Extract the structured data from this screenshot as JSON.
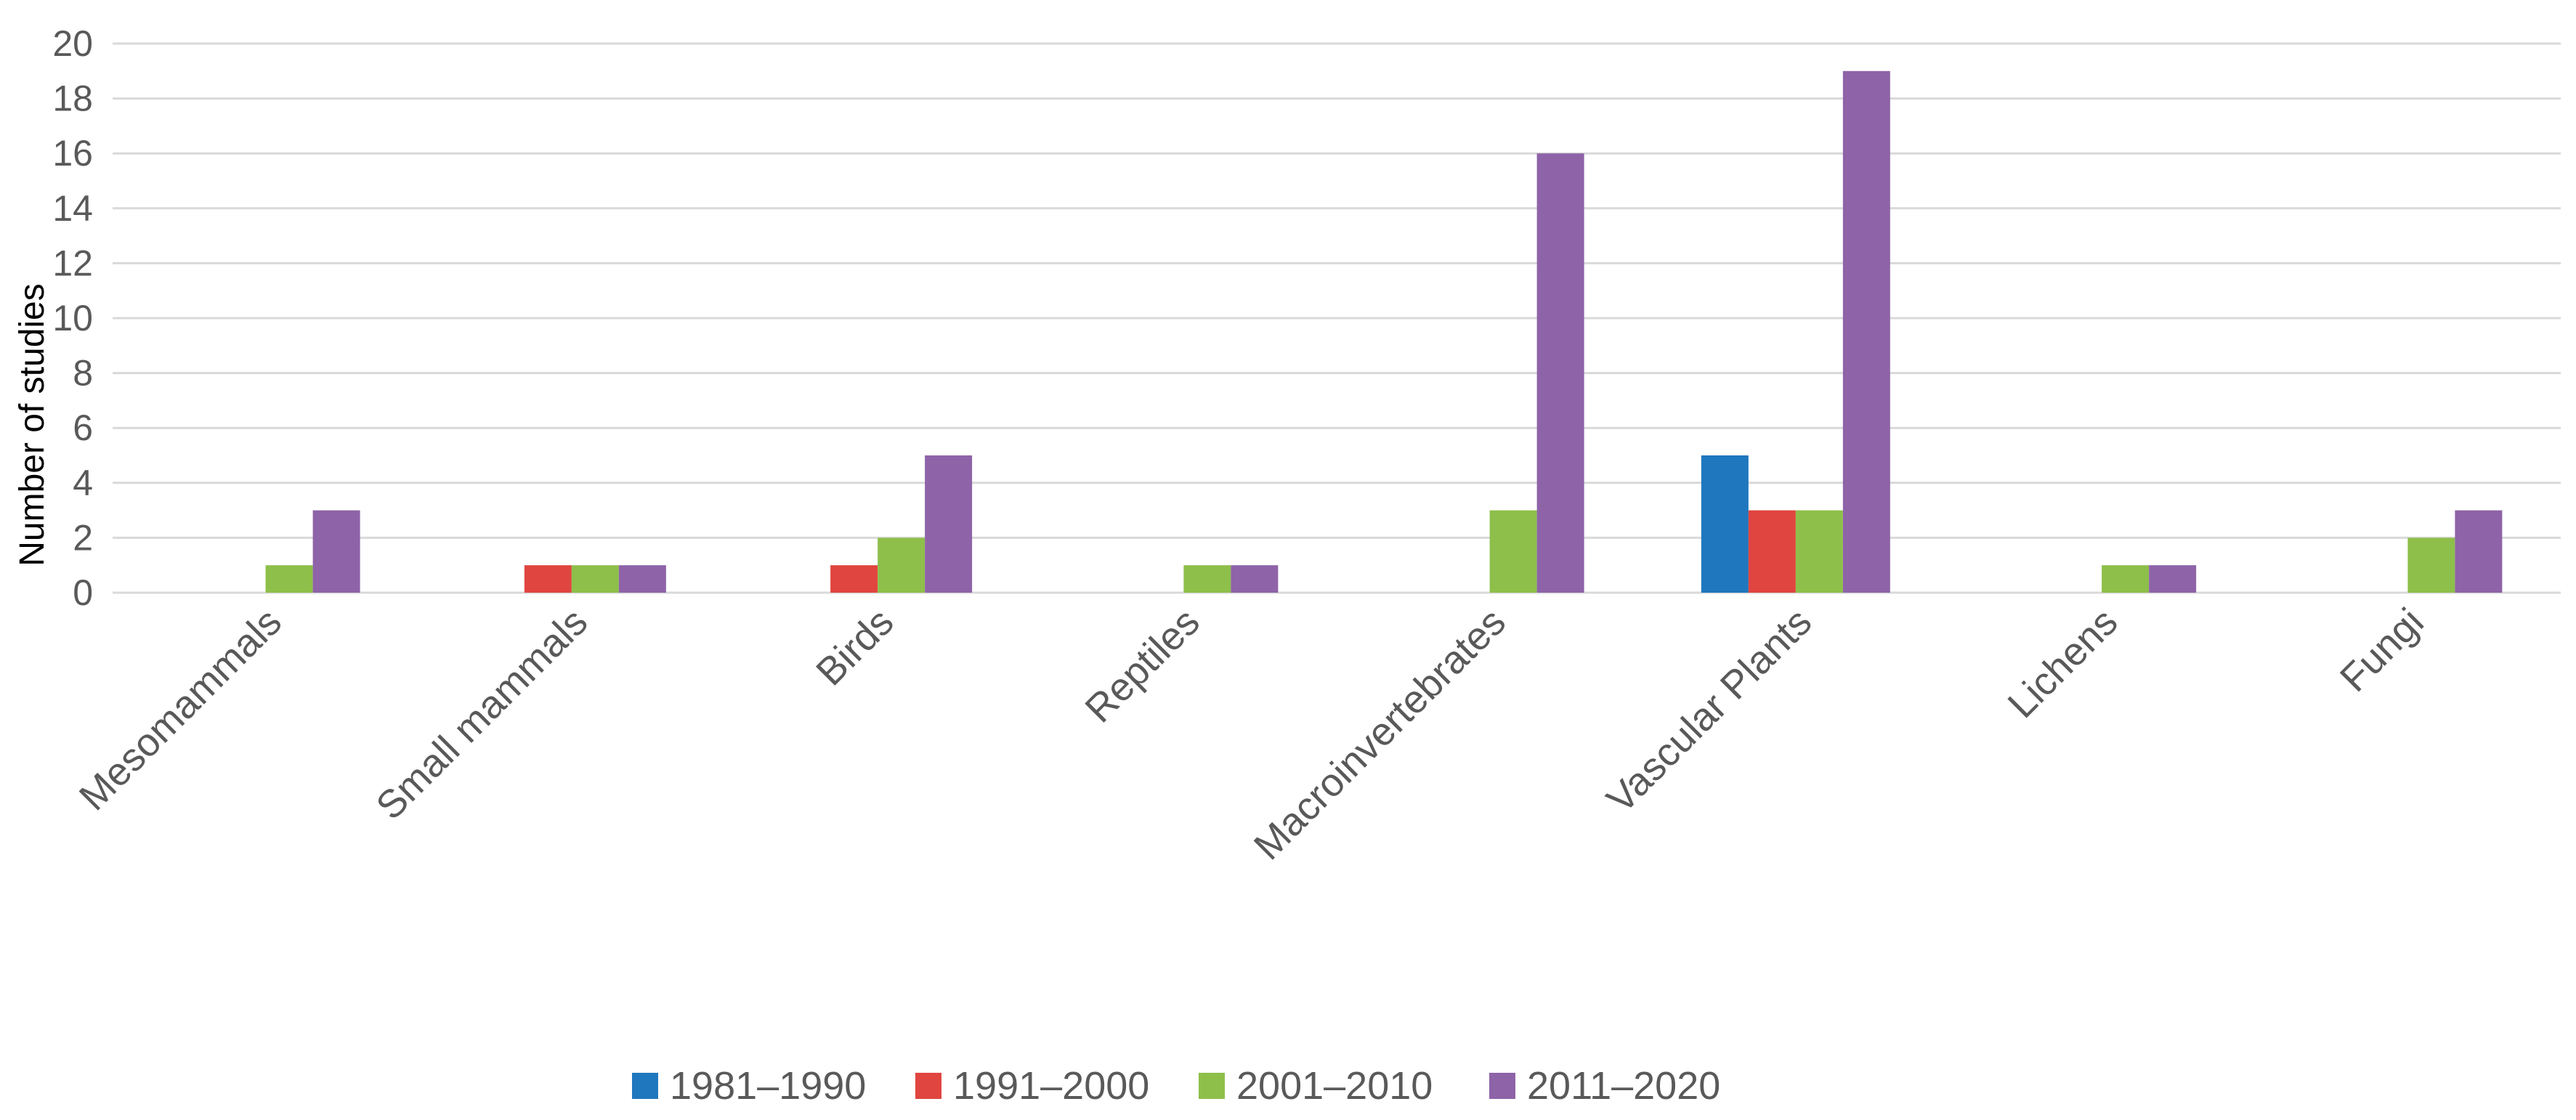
{
  "chart_data": {
    "type": "bar",
    "title": "",
    "xlabel": "",
    "ylabel": "Number of studies",
    "ylim": [
      0,
      20
    ],
    "yticks": [
      0,
      2,
      4,
      6,
      8,
      10,
      12,
      14,
      16,
      18,
      20
    ],
    "grid": true,
    "legend_position": "bottom",
    "categories": [
      "Mesomammals",
      "Small mammals",
      "Birds",
      "Reptiles",
      "Macroinvertebrates",
      "Vascular Plants",
      "Lichens",
      "Fungi"
    ],
    "series": [
      {
        "name": "1981–1990",
        "color": "#1f77bd",
        "values": [
          0,
          0,
          0,
          0,
          0,
          5,
          0,
          0
        ]
      },
      {
        "name": "1991–2000",
        "color": "#e0453f",
        "values": [
          0,
          1,
          1,
          0,
          0,
          3,
          0,
          0
        ]
      },
      {
        "name": "2001–2010",
        "color": "#8ebf4a",
        "values": [
          1,
          1,
          2,
          1,
          3,
          3,
          1,
          2
        ]
      },
      {
        "name": "2011–2020",
        "color": "#8e63a8",
        "values": [
          3,
          1,
          5,
          1,
          16,
          19,
          1,
          3
        ]
      }
    ]
  }
}
